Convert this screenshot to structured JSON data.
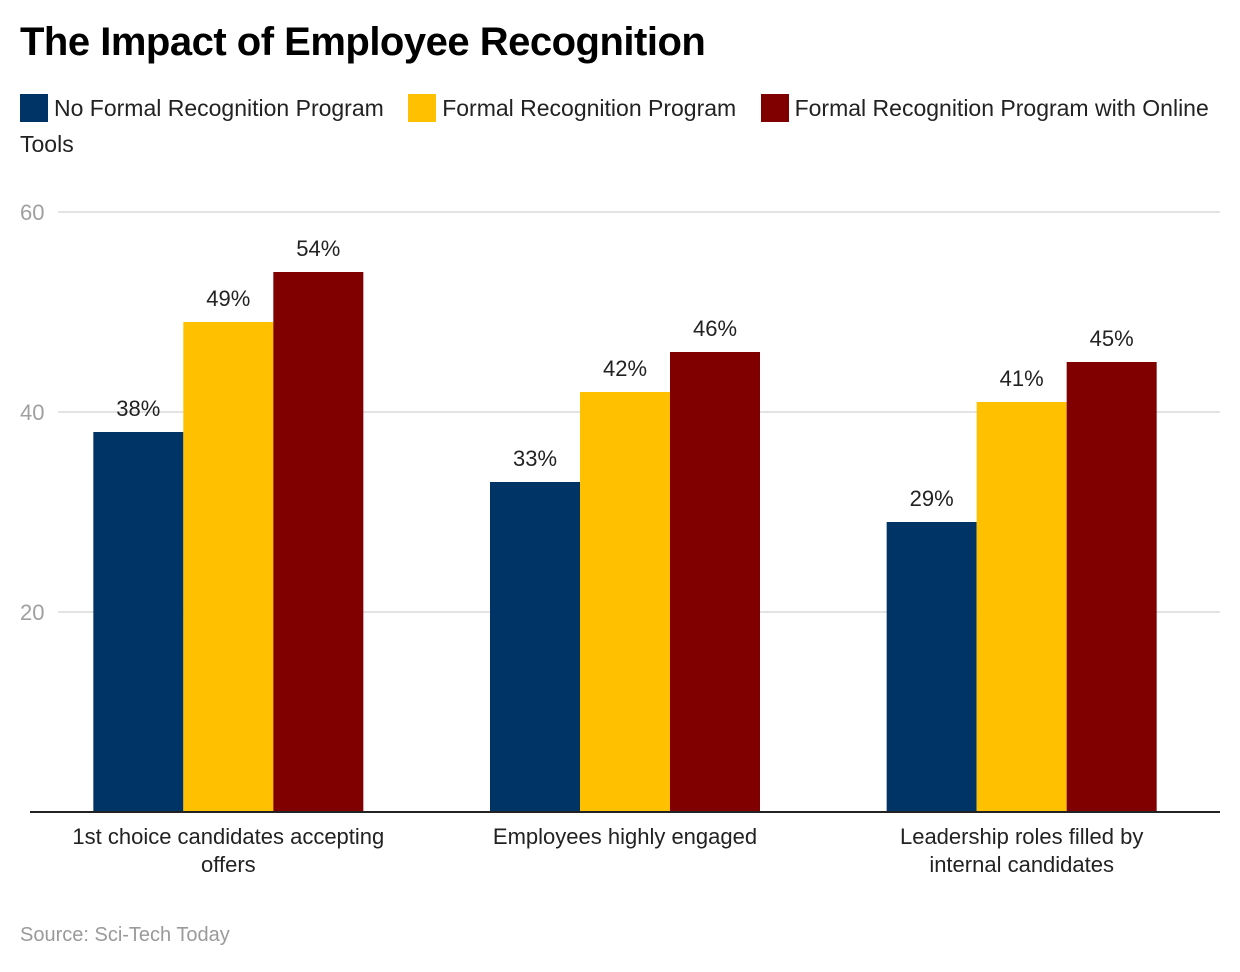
{
  "chart_data": {
    "type": "bar",
    "title": "The Impact of Employee Recognition",
    "categories": [
      [
        "1st choice candidates accepting",
        "offers"
      ],
      [
        "Employees highly engaged"
      ],
      [
        "Leadership roles filled by",
        "internal candidates"
      ]
    ],
    "series": [
      {
        "name": "No Formal Recognition Program",
        "color": "#003366",
        "values": [
          38,
          33,
          29
        ],
        "labels": [
          "38%",
          "33%",
          "29%"
        ]
      },
      {
        "name": "Formal Recognition Program",
        "color": "#FFC000",
        "values": [
          49,
          42,
          41
        ],
        "labels": [
          "49%",
          "42%",
          "41%"
        ]
      },
      {
        "name": "Formal Recognition Program with Online Tools",
        "color": "#800000",
        "values": [
          54,
          46,
          45
        ],
        "labels": [
          "54%",
          "46%",
          "45%"
        ]
      }
    ],
    "xlabel": "",
    "ylabel": "",
    "ylim": [
      0,
      60
    ],
    "yticks": [
      20,
      40,
      60
    ],
    "grid": true,
    "legend": "top-left",
    "source": "Source: Sci-Tech Today"
  }
}
